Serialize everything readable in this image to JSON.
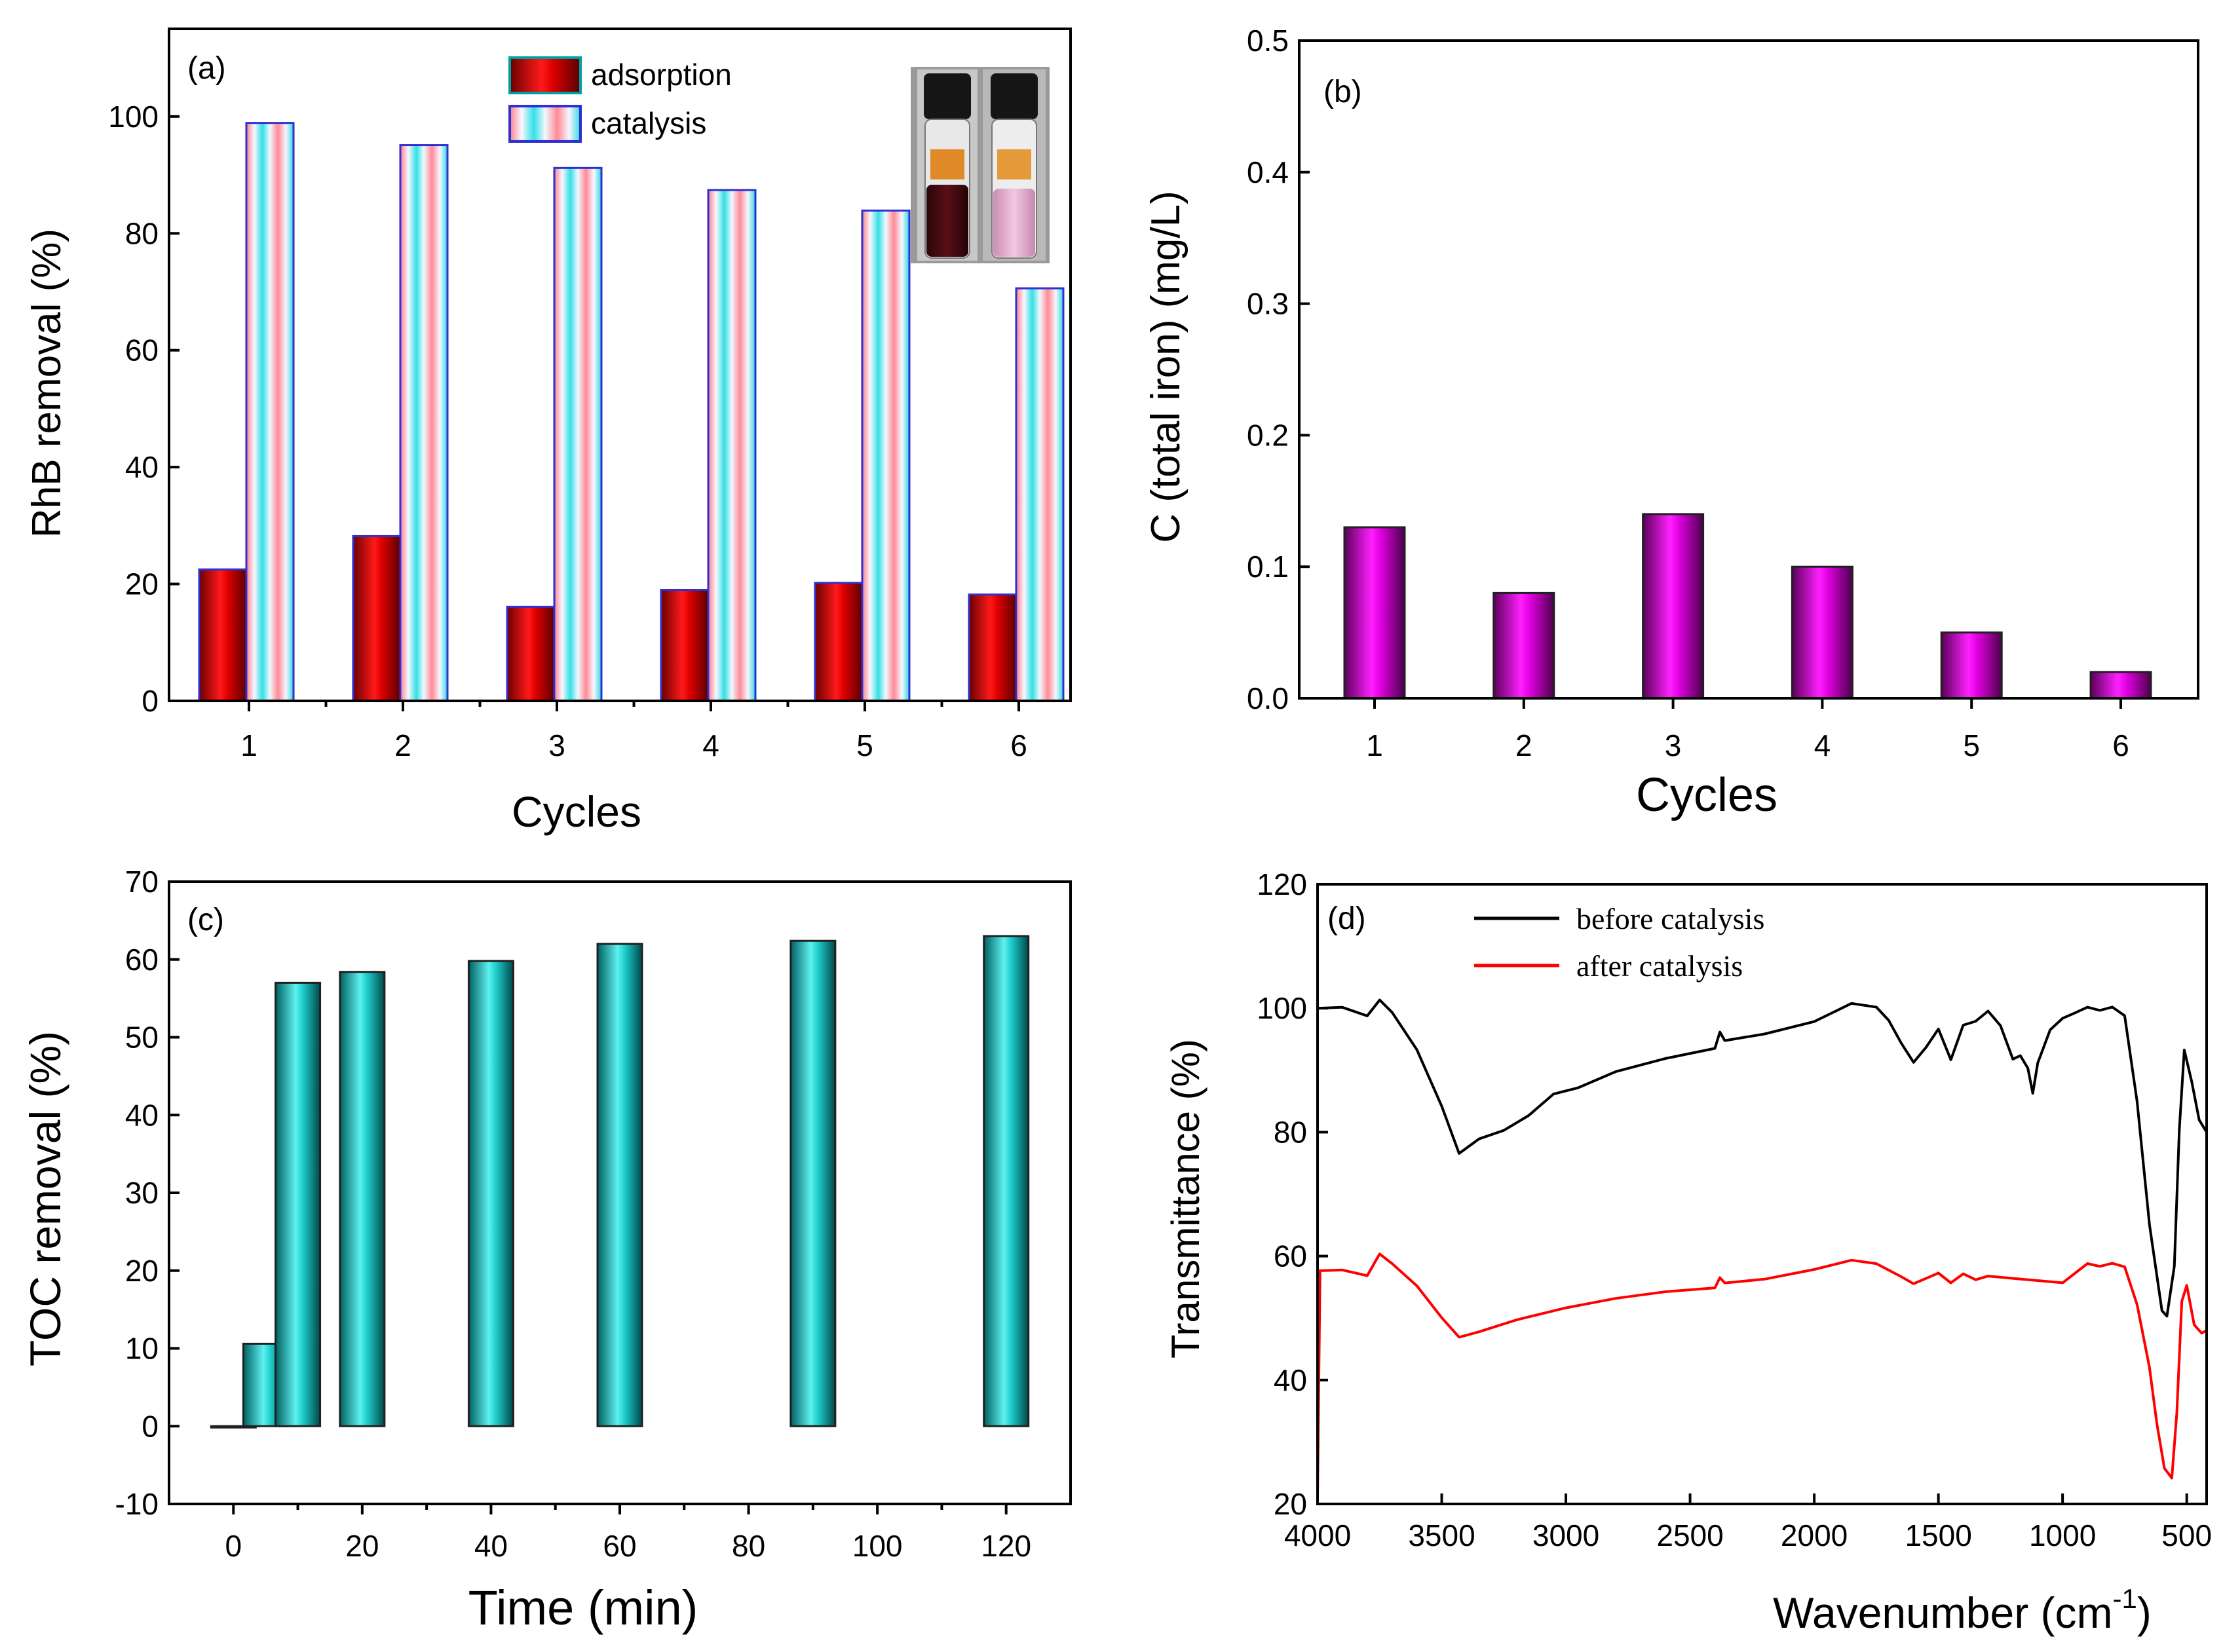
{
  "chart_data": [
    {
      "id": "a",
      "type": "bar",
      "panel_label": "(a)",
      "categories": [
        "1",
        "2",
        "3",
        "4",
        "5",
        "6"
      ],
      "series": [
        {
          "name": "adsorption",
          "values": [
            22.5,
            28.2,
            16.1,
            19.0,
            20.2,
            18.2
          ],
          "color": "#d0021b"
        },
        {
          "name": "catalysis",
          "values": [
            98.9,
            95.1,
            91.2,
            87.4,
            83.9,
            70.6
          ],
          "color": "#2fd6d6"
        }
      ],
      "xlabel": "Cycles",
      "ylabel": "RhB removal (%)",
      "ylim": [
        0,
        115
      ],
      "yticks": [
        0,
        20,
        40,
        60,
        80,
        100
      ],
      "legend_position": "top-center",
      "inset": "photo of two vials: dark red solution (left) and light pink solution (right)"
    },
    {
      "id": "b",
      "type": "bar",
      "panel_label": "(b)",
      "categories": [
        "1",
        "2",
        "3",
        "4",
        "5",
        "6"
      ],
      "series": [
        {
          "name": "total iron",
          "values": [
            0.13,
            0.08,
            0.14,
            0.1,
            0.05,
            0.02
          ],
          "color": "#e000e0"
        }
      ],
      "xlabel": "Cycles",
      "ylabel": "C (total iron) (mg/L)",
      "ylim": [
        0,
        0.5
      ],
      "yticks": [
        0.0,
        0.1,
        0.2,
        0.3,
        0.4,
        0.5
      ]
    },
    {
      "id": "c",
      "type": "bar",
      "panel_label": "(c)",
      "x": [
        0,
        5,
        10,
        20,
        40,
        60,
        90,
        120
      ],
      "series": [
        {
          "name": "TOC removal",
          "values": [
            0,
            10.6,
            57.0,
            58.4,
            59.8,
            62.0,
            62.4,
            63.0
          ],
          "color": "#22d4d4"
        }
      ],
      "xlabel": "Time (min)",
      "ylabel": "TOC removal (%)",
      "xlim": [
        -10,
        130
      ],
      "xticks": [
        0,
        20,
        40,
        60,
        80,
        100,
        120
      ],
      "ylim": [
        -10,
        70
      ],
      "yticks": [
        -10,
        0,
        10,
        20,
        30,
        40,
        50,
        60,
        70
      ]
    },
    {
      "id": "d",
      "type": "line",
      "panel_label": "(d)",
      "series": [
        {
          "name": "before catalysis",
          "color": "#000000",
          "x": [
            4000,
            3900,
            3800,
            3750,
            3700,
            3600,
            3500,
            3430,
            3350,
            3250,
            3150,
            3050,
            2950,
            2800,
            2600,
            2400,
            2380,
            2360,
            2200,
            2000,
            1850,
            1750,
            1700,
            1650,
            1600,
            1550,
            1500,
            1450,
            1400,
            1350,
            1300,
            1250,
            1200,
            1170,
            1140,
            1120,
            1100,
            1050,
            1000,
            950,
            900,
            850,
            800,
            750,
            700,
            650,
            600,
            580,
            550,
            530,
            510,
            480,
            450,
            420
          ],
          "y": [
            100.0,
            100.0,
            98.5,
            101.0,
            99.0,
            93.0,
            84.0,
            76.5,
            79.0,
            80.5,
            83.0,
            86.5,
            87.5,
            90.0,
            92.0,
            93.5,
            96.0,
            94.5,
            95.5,
            97.5,
            100.5,
            100.0,
            98.0,
            94.5,
            91.5,
            94.0,
            97.0,
            92.0,
            97.5,
            98.0,
            99.5,
            97.0,
            91.5,
            92.0,
            90.0,
            86.0,
            91.0,
            96.5,
            98.5,
            99.5,
            100.5,
            100.0,
            100.5,
            99.0,
            85.0,
            65.0,
            51.0,
            50.0,
            58.0,
            80.0,
            93.0,
            88.0,
            82.0,
            80.0
          ]
        },
        {
          "name": "after catalysis",
          "color": "#ff0000",
          "x": [
            4000,
            3990,
            3900,
            3800,
            3750,
            3700,
            3600,
            3500,
            3430,
            3350,
            3200,
            3000,
            2800,
            2600,
            2400,
            2380,
            2360,
            2200,
            2000,
            1850,
            1750,
            1650,
            1600,
            1550,
            1500,
            1450,
            1400,
            1350,
            1300,
            1200,
            1100,
            1000,
            900,
            850,
            800,
            750,
            700,
            650,
            620,
            590,
            560,
            540,
            520,
            500,
            470,
            440,
            420
          ],
          "y": [
            21.0,
            57.5,
            57.5,
            56.5,
            60.0,
            58.5,
            55.0,
            50.0,
            47.0,
            48.0,
            50.0,
            52.0,
            53.5,
            54.5,
            55.0,
            56.5,
            55.5,
            56.0,
            57.5,
            59.0,
            58.5,
            56.5,
            55.5,
            56.5,
            57.5,
            56.0,
            57.5,
            56.5,
            57.0,
            56.5,
            56.0,
            55.5,
            58.5,
            58.0,
            58.5,
            58.0,
            52.0,
            42.0,
            33.0,
            26.0,
            24.5,
            35.0,
            53.0,
            55.5,
            49.0,
            47.5,
            48.0
          ]
        }
      ],
      "xlabel": "Wavenumber (cm⁻¹)",
      "ylabel": "Transmittance (%)",
      "xlim": [
        4000,
        420
      ],
      "xticks": [
        4000,
        3500,
        3000,
        2500,
        2000,
        1500,
        1000,
        500
      ],
      "ylim": [
        20,
        120
      ],
      "yticks": [
        20,
        40,
        60,
        80,
        100,
        120
      ],
      "legend_position": "top-left"
    }
  ],
  "text": {
    "a_xlabel": "Cycles",
    "a_ylabel": "RhB removal (%)",
    "a_leg1": "adsorption",
    "a_leg2": "catalysis",
    "b_xlabel": "Cycles",
    "b_ylabel": "C (total iron) (mg/L)",
    "c_xlabel": "Time (min)",
    "c_ylabel": "TOC removal (%)",
    "d_xlabel_main": "Wavenumber (cm",
    "d_xlabel_sup": "-1",
    "d_xlabel_end": ")",
    "d_ylabel": "Transmittance (%)",
    "d_leg1": "before catalysis",
    "d_leg2": "after catalysis"
  }
}
